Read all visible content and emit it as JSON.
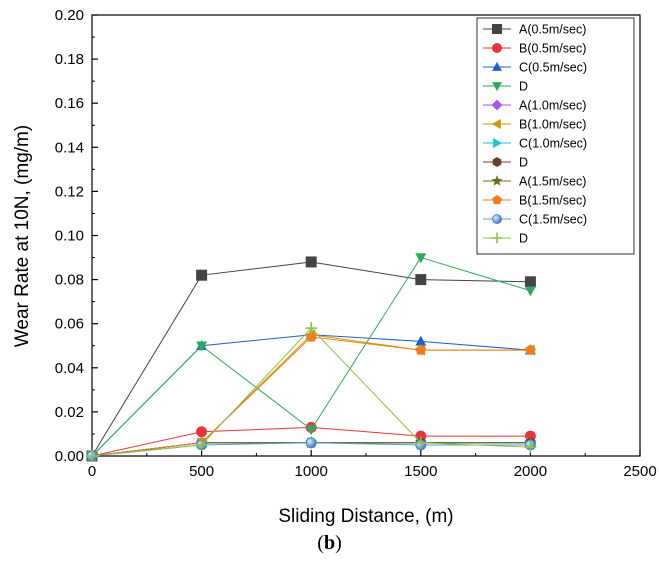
{
  "caption": {
    "open": "(",
    "letter": "b",
    "close": ")"
  },
  "chart_data": {
    "type": "line",
    "xlabel": "Sliding Distance, (m)",
    "ylabel": "Wear Rate at 10N, (mg/m)",
    "xlim": [
      0,
      2500
    ],
    "ylim": [
      0,
      0.2
    ],
    "xticks": [
      0,
      500,
      1000,
      1500,
      2000,
      2500
    ],
    "xtick_labels": [
      "0",
      "500",
      "1000",
      "1500",
      "2000",
      "2500"
    ],
    "yticks": [
      0,
      0.02,
      0.04,
      0.06,
      0.08,
      0.1,
      0.12,
      0.14,
      0.16,
      0.18,
      0.2
    ],
    "ytick_labels": [
      "0.00",
      "0.02",
      "0.04",
      "0.06",
      "0.08",
      "0.10",
      "0.12",
      "0.14",
      "0.16",
      "0.18",
      "0.20"
    ],
    "grid": false,
    "legend_position": "top-right",
    "x": [
      0,
      500,
      1000,
      1500,
      2000
    ],
    "series": [
      {
        "name": "A(0.5m/sec)",
        "marker": "square",
        "color": "#444444",
        "values": [
          0,
          0.082,
          0.088,
          0.08,
          0.079
        ]
      },
      {
        "name": "B(0.5m/sec)",
        "marker": "circle",
        "color": "#e8343c",
        "values": [
          0,
          0.011,
          0.013,
          0.009,
          0.009
        ]
      },
      {
        "name": "C(0.5m/sec)",
        "marker": "triangle-up",
        "color": "#1f5fd0",
        "values": [
          0,
          0.05,
          0.055,
          0.052,
          0.048
        ]
      },
      {
        "name": "D",
        "marker": "triangle-down",
        "color": "#2eab5a",
        "values": [
          0,
          0.05,
          0.012,
          0.09,
          0.075
        ]
      },
      {
        "name": "A(1.0m/sec)",
        "marker": "diamond",
        "color": "#a855e8",
        "values": [
          0,
          0.006,
          0.006,
          0.006,
          0.006
        ]
      },
      {
        "name": "B(1.0m/sec)",
        "marker": "triangle-left",
        "color": "#c79a00",
        "values": [
          0,
          0.006,
          0.055,
          0.048,
          0.048
        ]
      },
      {
        "name": "C(1.0m/sec)",
        "marker": "triangle-right",
        "color": "#17c5d6",
        "values": [
          0,
          0.006,
          0.006,
          0.006,
          0.006
        ]
      },
      {
        "name": "D",
        "marker": "hexagon",
        "color": "#6b3d33",
        "values": [
          0,
          0.006,
          0.006,
          0.006,
          0.006
        ]
      },
      {
        "name": "A(1.5m/sec)",
        "marker": "star",
        "color": "#6e6e1a",
        "values": [
          0,
          0.006,
          0.006,
          0.006,
          0.006
        ]
      },
      {
        "name": "B(1.5m/sec)",
        "marker": "pentagon",
        "color": "#f27d1e",
        "values": [
          0,
          0.006,
          0.054,
          0.048,
          0.048
        ]
      },
      {
        "name": "C(1.5m/sec)",
        "marker": "sphere",
        "color": "#5b9bd5",
        "values": [
          0,
          0.005,
          0.006,
          0.005,
          0.005
        ]
      },
      {
        "name": "D",
        "marker": "plus",
        "color": "#8bc34a",
        "values": [
          0,
          0.005,
          0.058,
          0.006,
          0.004
        ]
      }
    ]
  }
}
